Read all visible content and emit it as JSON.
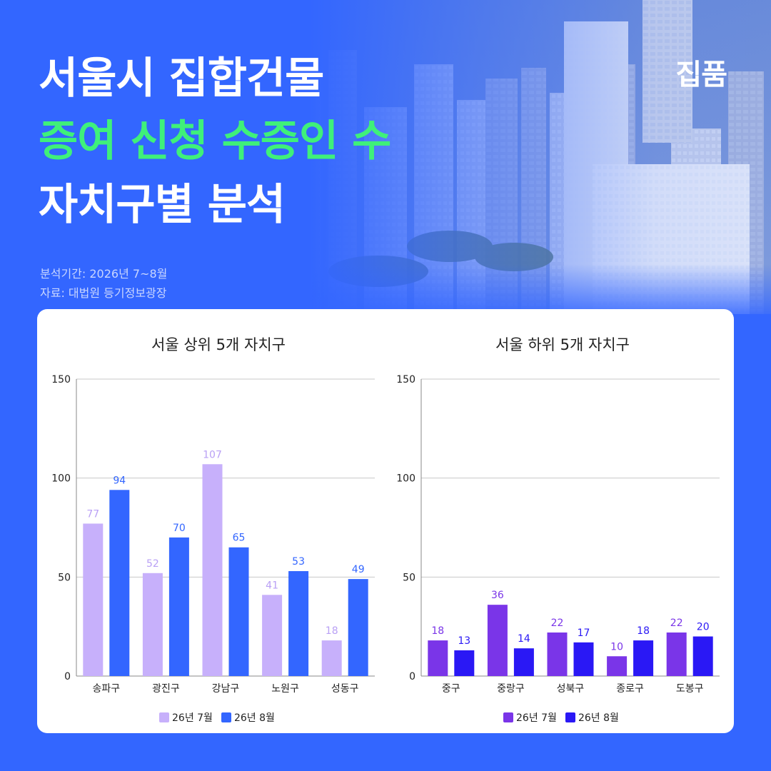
{
  "header": {
    "title_line1": "서울시 집합건물",
    "title_line2": "증여 신청 수증인 수",
    "title_line3": "자치구별 분석",
    "brand": "집품",
    "period": "분석기간: 2026년 7~8월",
    "source": "자료: 대법원 등기정보광장"
  },
  "colors": {
    "background": "#3366ff",
    "accent_green": "#3ff07a",
    "top_jul": "#c7b0fb",
    "top_aug": "#3366ff",
    "bottom_jul": "#7a35e8",
    "bottom_aug": "#2a18f5"
  },
  "chart_data": [
    {
      "type": "bar",
      "title": "서울 상위 5개 자치구",
      "categories": [
        "송파구",
        "광진구",
        "강남구",
        "노원구",
        "성동구"
      ],
      "series": [
        {
          "name": "26년 7월",
          "values": [
            77,
            52,
            107,
            41,
            18
          ],
          "color": "#c7b0fb"
        },
        {
          "name": "26년 8월",
          "values": [
            94,
            70,
            65,
            53,
            49
          ],
          "color": "#3366ff"
        }
      ],
      "ylim": [
        0,
        150
      ],
      "yticks": [
        0,
        50,
        100,
        150
      ],
      "grid": true,
      "legend": "bottom-center"
    },
    {
      "type": "bar",
      "title": "서울 하위 5개 자치구",
      "categories": [
        "중구",
        "중랑구",
        "성북구",
        "종로구",
        "도봉구"
      ],
      "series": [
        {
          "name": "26년 7월",
          "values": [
            18,
            36,
            22,
            10,
            22
          ],
          "color": "#7a35e8"
        },
        {
          "name": "26년 8월",
          "values": [
            13,
            14,
            17,
            18,
            20
          ],
          "color": "#2a18f5"
        }
      ],
      "ylim": [
        0,
        150
      ],
      "yticks": [
        0,
        50,
        100,
        150
      ],
      "grid": true,
      "legend": "bottom-center"
    }
  ]
}
